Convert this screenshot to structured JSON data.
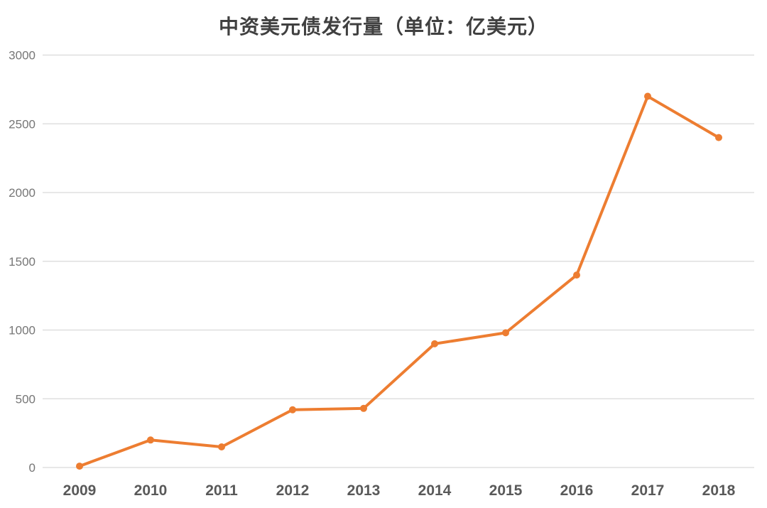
{
  "page": {
    "background": "#ffffff"
  },
  "chart_data": {
    "type": "line",
    "title": "中资美元债发行量（单位：亿美元）",
    "categories": [
      "2009",
      "2010",
      "2011",
      "2012",
      "2013",
      "2014",
      "2015",
      "2016",
      "2017",
      "2018"
    ],
    "values": [
      10,
      200,
      150,
      420,
      430,
      900,
      980,
      1400,
      2700,
      2400
    ],
    "xlabel": "",
    "ylabel": "",
    "ylim": [
      0,
      3000
    ],
    "yticks": [
      0,
      500,
      1000,
      1500,
      2000,
      2500,
      3000
    ],
    "grid": true,
    "legend": false,
    "marker": "circle",
    "colors": {
      "line": "#ED7D31",
      "marker": "#ED7D31",
      "gridline": "#D9D9D9",
      "title": "#404040",
      "xtick": "#595959",
      "ytick": "#767676"
    }
  }
}
